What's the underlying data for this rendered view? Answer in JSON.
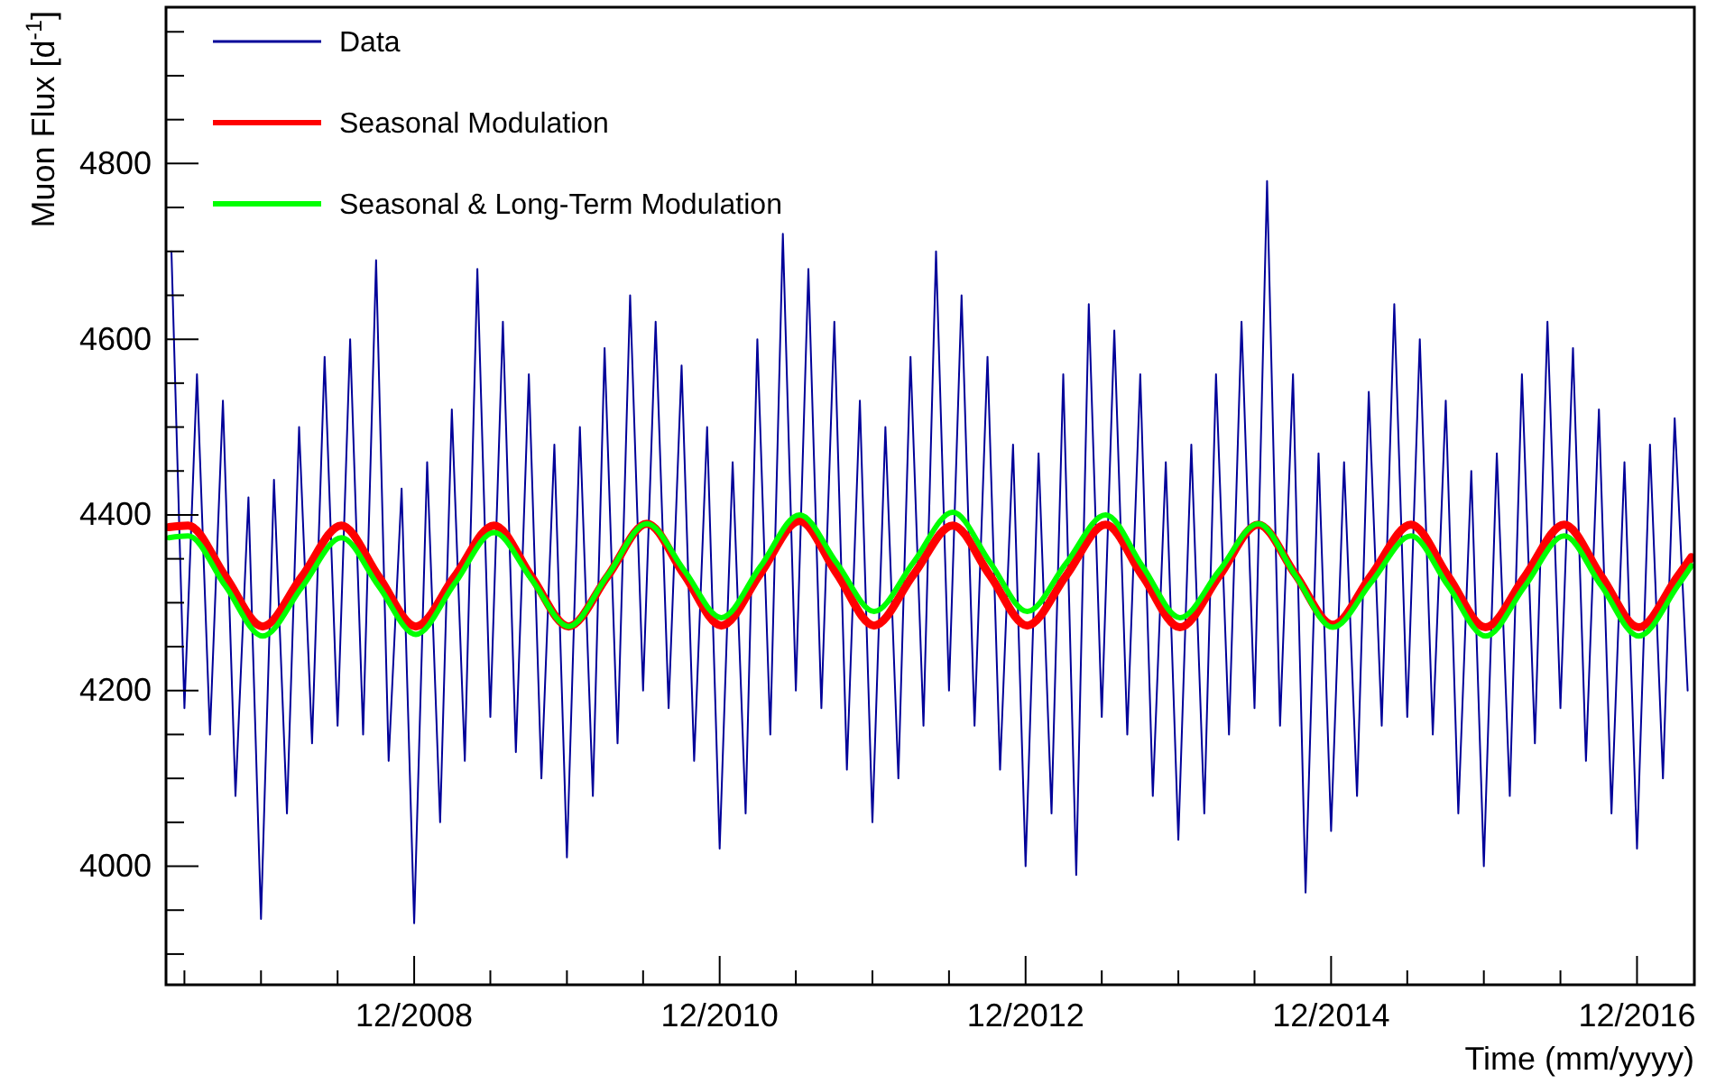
{
  "chart_data": {
    "type": "line",
    "xlabel": "Time (mm/yyyy)",
    "ylabel": "Muon Flux [d$^{-1}$]",
    "xlim": [
      "2007-04-18",
      "2017-04-17"
    ],
    "ylim": [
      3865,
      4978
    ],
    "xticks": [
      {
        "value": "2007-06-01",
        "label": null
      },
      {
        "value": "2007-12-01",
        "label": null
      },
      {
        "value": "2008-06-01",
        "label": null
      },
      {
        "value": "2008-12-01",
        "label": "12/2008"
      },
      {
        "value": "2009-06-01",
        "label": null
      },
      {
        "value": "2009-12-01",
        "label": null
      },
      {
        "value": "2010-06-01",
        "label": null
      },
      {
        "value": "2010-12-01",
        "label": "12/2010"
      },
      {
        "value": "2011-06-01",
        "label": null
      },
      {
        "value": "2011-12-01",
        "label": null
      },
      {
        "value": "2012-06-01",
        "label": null
      },
      {
        "value": "2012-12-01",
        "label": "12/2012"
      },
      {
        "value": "2013-06-01",
        "label": null
      },
      {
        "value": "2013-12-01",
        "label": null
      },
      {
        "value": "2014-06-01",
        "label": null
      },
      {
        "value": "2014-12-01",
        "label": "12/2014"
      },
      {
        "value": "2015-06-01",
        "label": null
      },
      {
        "value": "2015-12-01",
        "label": null
      },
      {
        "value": "2016-06-01",
        "label": null
      },
      {
        "value": "2016-12-01",
        "label": "12/2016"
      }
    ],
    "yticks": [
      {
        "value": 3900,
        "label": null
      },
      {
        "value": 3950,
        "label": null
      },
      4000,
      {
        "value": 4050,
        "label": null
      },
      {
        "value": 4100,
        "label": null
      },
      {
        "value": 4150,
        "label": null
      },
      4200,
      {
        "value": 4250,
        "label": null
      },
      {
        "value": 4300,
        "label": null
      },
      {
        "value": 4350,
        "label": null
      },
      4400,
      {
        "value": 4450,
        "label": null
      },
      {
        "value": 4500,
        "label": null
      },
      {
        "value": 4550,
        "label": null
      },
      4600,
      {
        "value": 4650,
        "label": null
      },
      {
        "value": 4700,
        "label": null
      },
      {
        "value": 4750,
        "label": null
      },
      4800,
      {
        "value": 4850,
        "label": null
      },
      {
        "value": 4900,
        "label": null
      },
      {
        "value": 4950,
        "label": null
      }
    ],
    "grid": false,
    "legend": "top left",
    "marker": "none",
    "line_style": "solid",
    "series": [
      {
        "name": "Data",
        "color": "#000099",
        "x": [
          "2007-05-01",
          "2007-06-01",
          "2007-07-01",
          "2007-08-01",
          "2007-09-01",
          "2007-10-01",
          "2007-11-01",
          "2007-12-01",
          "2008-01-01",
          "2008-02-01",
          "2008-03-01",
          "2008-04-01",
          "2008-05-01",
          "2008-06-01",
          "2008-07-01",
          "2008-08-01",
          "2008-09-01",
          "2008-10-01",
          "2008-11-01",
          "2008-12-01",
          "2009-01-01",
          "2009-02-01",
          "2009-03-01",
          "2009-04-01",
          "2009-05-01",
          "2009-06-01",
          "2009-07-01",
          "2009-08-01",
          "2009-09-01",
          "2009-10-01",
          "2009-11-01",
          "2009-12-01",
          "2010-01-01",
          "2010-02-01",
          "2010-03-01",
          "2010-04-01",
          "2010-05-01",
          "2010-06-01",
          "2010-07-01",
          "2010-08-01",
          "2010-09-01",
          "2010-10-01",
          "2010-11-01",
          "2010-12-01",
          "2011-01-01",
          "2011-02-01",
          "2011-03-01",
          "2011-04-01",
          "2011-05-01",
          "2011-06-01",
          "2011-07-01",
          "2011-08-01",
          "2011-09-01",
          "2011-10-01",
          "2011-11-01",
          "2011-12-01",
          "2012-01-01",
          "2012-02-01",
          "2012-03-01",
          "2012-04-01",
          "2012-05-01",
          "2012-06-01",
          "2012-07-01",
          "2012-08-01",
          "2012-09-01",
          "2012-10-01",
          "2012-11-01",
          "2012-12-01",
          "2013-01-01",
          "2013-02-01",
          "2013-03-01",
          "2013-04-01",
          "2013-05-01",
          "2013-06-01",
          "2013-07-01",
          "2013-08-01",
          "2013-09-01",
          "2013-10-01",
          "2013-11-01",
          "2013-12-01",
          "2014-01-01",
          "2014-02-01",
          "2014-03-01",
          "2014-04-01",
          "2014-05-01",
          "2014-06-01",
          "2014-07-01",
          "2014-08-01",
          "2014-09-01",
          "2014-10-01",
          "2014-11-01",
          "2014-12-01",
          "2015-01-01",
          "2015-02-01",
          "2015-03-01",
          "2015-04-01",
          "2015-05-01",
          "2015-06-01",
          "2015-07-01",
          "2015-08-01",
          "2015-09-01",
          "2015-10-01",
          "2015-11-01",
          "2015-12-01",
          "2016-01-01",
          "2016-02-01",
          "2016-03-01",
          "2016-04-01",
          "2016-05-01",
          "2016-06-01",
          "2016-07-01",
          "2016-08-01",
          "2016-09-01",
          "2016-10-01",
          "2016-11-01",
          "2016-12-01",
          "2017-01-01",
          "2017-02-01",
          "2017-03-01",
          "2017-04-01"
        ],
        "values": [
          4700,
          4180,
          4560,
          4150,
          4530,
          4080,
          4420,
          3940,
          4440,
          4060,
          4500,
          4140,
          4580,
          4160,
          4600,
          4150,
          4690,
          4120,
          4430,
          3935,
          4460,
          4050,
          4520,
          4120,
          4680,
          4170,
          4620,
          4130,
          4560,
          4100,
          4480,
          4010,
          4500,
          4080,
          4590,
          4140,
          4650,
          4200,
          4620,
          4180,
          4570,
          4120,
          4500,
          4020,
          4460,
          4060,
          4600,
          4150,
          4720,
          4200,
          4680,
          4180,
          4620,
          4110,
          4530,
          4050,
          4500,
          4100,
          4580,
          4160,
          4700,
          4200,
          4650,
          4160,
          4580,
          4110,
          4480,
          4000,
          4470,
          4060,
          4560,
          3990,
          4640,
          4170,
          4610,
          4150,
          4560,
          4080,
          4460,
          4030,
          4480,
          4060,
          4560,
          4150,
          4620,
          4180,
          4780,
          4160,
          4560,
          3970,
          4470,
          4040,
          4460,
          4080,
          4540,
          4160,
          4640,
          4170,
          4600,
          4150,
          4530,
          4060,
          4450,
          4000,
          4470,
          4080,
          4560,
          4140,
          4620,
          4180,
          4590,
          4120,
          4520,
          4060,
          4460,
          4020,
          4480,
          4100,
          4510,
          4200
        ]
      },
      {
        "name": "Seasonal Modulation",
        "color": "#ff0000",
        "x": [
          "2007-04-25",
          "2007-06-10",
          "2007-09-07",
          "2007-12-05",
          "2008-03-08",
          "2008-06-10",
          "2008-09-07",
          "2008-12-05",
          "2009-03-08",
          "2009-06-10",
          "2009-09-07",
          "2009-12-05",
          "2010-03-08",
          "2010-06-10",
          "2010-09-07",
          "2010-12-05",
          "2011-03-08",
          "2011-06-10",
          "2011-09-07",
          "2011-12-05",
          "2012-03-08",
          "2012-06-10",
          "2012-09-07",
          "2012-12-05",
          "2013-03-08",
          "2013-06-10",
          "2013-09-07",
          "2013-12-05",
          "2014-03-08",
          "2014-06-10",
          "2014-09-07",
          "2014-12-05",
          "2015-03-08",
          "2015-06-10",
          "2015-09-07",
          "2015-12-05",
          "2016-03-08",
          "2016-06-10",
          "2016-09-07",
          "2016-12-05",
          "2017-03-08",
          "2017-04-10"
        ],
        "values": [
          4386,
          4388,
          4330,
          4273,
          4330,
          4388,
          4330,
          4273,
          4330,
          4388,
          4330,
          4273,
          4330,
          4390,
          4332,
          4274,
          4333,
          4393,
          4333,
          4274,
          4332,
          4388,
          4331,
          4274,
          4331,
          4389,
          4330,
          4272,
          4330,
          4389,
          4332,
          4275,
          4332,
          4389,
          4330,
          4272,
          4330,
          4389,
          4330,
          4272,
          4330,
          4352
        ]
      },
      {
        "name": "Seasonal & Long-Term Modulation",
        "color": "#00ff00",
        "x": [
          "2007-04-25",
          "2007-06-10",
          "2007-09-07",
          "2007-12-05",
          "2008-03-08",
          "2008-06-10",
          "2008-09-07",
          "2008-12-05",
          "2009-03-08",
          "2009-06-10",
          "2009-09-07",
          "2009-12-05",
          "2010-03-08",
          "2010-06-10",
          "2010-09-07",
          "2010-12-05",
          "2011-03-08",
          "2011-06-10",
          "2011-09-07",
          "2011-12-05",
          "2012-03-08",
          "2012-06-10",
          "2012-09-07",
          "2012-12-05",
          "2013-03-08",
          "2013-06-10",
          "2013-09-07",
          "2013-12-05",
          "2014-03-08",
          "2014-06-10",
          "2014-09-07",
          "2014-12-05",
          "2015-03-08",
          "2015-06-10",
          "2015-09-07",
          "2015-12-05",
          "2016-03-08",
          "2016-06-10",
          "2016-09-07",
          "2016-12-05",
          "2017-03-08",
          "2017-04-10"
        ],
        "values": [
          4374,
          4376,
          4319,
          4262,
          4318,
          4374,
          4319,
          4264,
          4322,
          4380,
          4327,
          4273,
          4331,
          4390,
          4337,
          4283,
          4341,
          4400,
          4345,
          4290,
          4346,
          4403,
          4346,
          4290,
          4345,
          4400,
          4341,
          4283,
          4336,
          4390,
          4331,
          4272,
          4324,
          4376,
          4319,
          4262,
          4319,
          4376,
          4319,
          4262,
          4319,
          4342
        ]
      }
    ]
  }
}
